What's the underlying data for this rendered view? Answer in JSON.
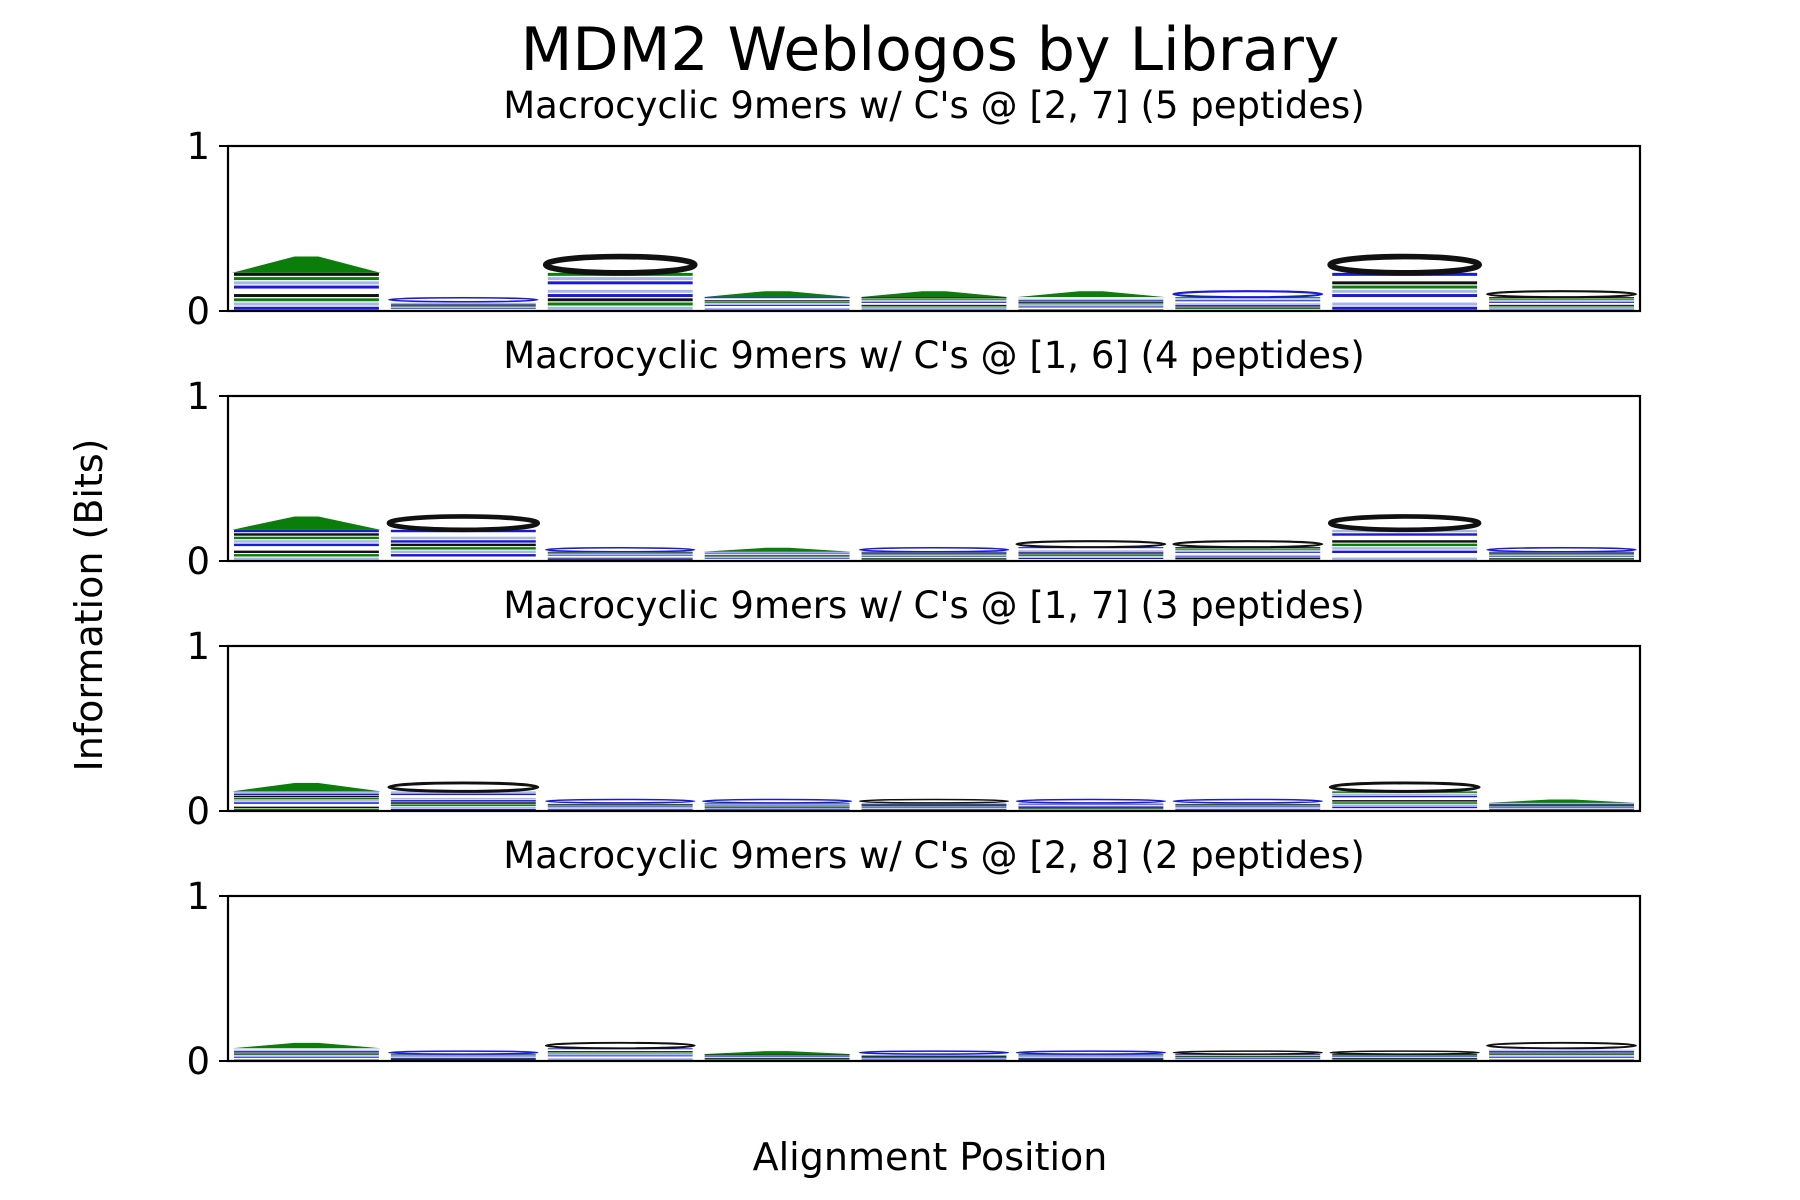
{
  "figure": {
    "title": "MDM2 Weblogos by Library",
    "xlabel": "Alignment Position",
    "ylabel": "Information (Bits)"
  },
  "colors": {
    "green": "#0a7d0a",
    "blue": "#1a1ad6",
    "light_blue": "#a9b6e8",
    "black": "#111111",
    "white": "#ffffff"
  },
  "chart_data": [
    {
      "type": "bar",
      "title": "Macrocyclic 9mers w/ C's @ [2, 7] (5 peptides)",
      "ylim": [
        0,
        1
      ],
      "yticks": [
        "0",
        "1"
      ],
      "x": [
        1,
        2,
        3,
        4,
        5,
        6,
        7,
        8,
        9
      ],
      "values": [
        0.33,
        0.08,
        0.33,
        0.12,
        0.12,
        0.12,
        0.12,
        0.33,
        0.12
      ],
      "top_color": [
        "green",
        "blue",
        "black",
        "green",
        "green",
        "green",
        "blue",
        "black",
        "black"
      ]
    },
    {
      "type": "bar",
      "title": "Macrocyclic 9mers w/ C's @ [1, 6] (4 peptides)",
      "ylim": [
        0,
        1
      ],
      "yticks": [
        "0",
        "1"
      ],
      "x": [
        1,
        2,
        3,
        4,
        5,
        6,
        7,
        8,
        9
      ],
      "values": [
        0.27,
        0.27,
        0.08,
        0.08,
        0.08,
        0.12,
        0.12,
        0.27,
        0.08
      ],
      "top_color": [
        "green",
        "black",
        "blue",
        "green",
        "blue",
        "black",
        "black",
        "black",
        "blue"
      ]
    },
    {
      "type": "bar",
      "title": "Macrocyclic 9mers w/ C's @ [1, 7] (3 peptides)",
      "ylim": [
        0,
        1
      ],
      "yticks": [
        "0",
        "1"
      ],
      "x": [
        1,
        2,
        3,
        4,
        5,
        6,
        7,
        8,
        9
      ],
      "values": [
        0.17,
        0.17,
        0.07,
        0.07,
        0.07,
        0.07,
        0.07,
        0.17,
        0.07
      ],
      "top_color": [
        "green",
        "black",
        "blue",
        "blue",
        "black",
        "blue",
        "blue",
        "black",
        "green"
      ]
    },
    {
      "type": "bar",
      "title": "Macrocyclic 9mers w/ C's @ [2, 8] (2 peptides)",
      "ylim": [
        0,
        1
      ],
      "yticks": [
        "0",
        "1"
      ],
      "x": [
        1,
        2,
        3,
        4,
        5,
        6,
        7,
        8,
        9
      ],
      "values": [
        0.11,
        0.06,
        0.11,
        0.06,
        0.06,
        0.06,
        0.06,
        0.06,
        0.11
      ],
      "top_color": [
        "green",
        "blue",
        "black",
        "green",
        "blue",
        "blue",
        "black",
        "black",
        "black"
      ]
    }
  ]
}
